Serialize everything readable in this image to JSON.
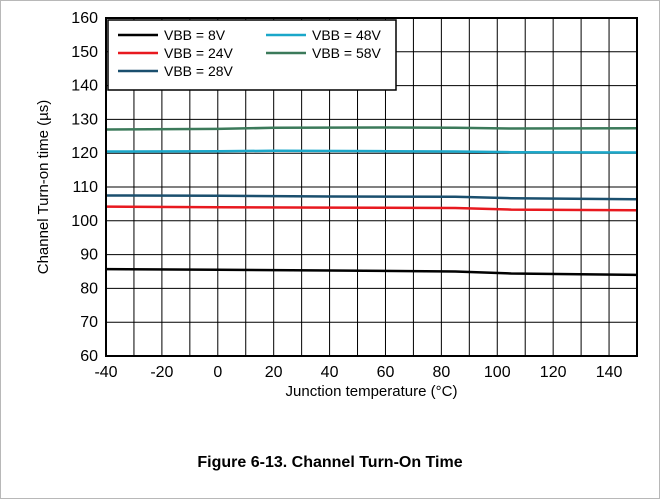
{
  "caption": "Figure 6-13. Channel Turn-On Time",
  "chart_data": {
    "type": "line",
    "title": "",
    "xlabel": "Junction temperature (°C)",
    "ylabel": "Channel Turn-on time (µs)",
    "xlim": [
      -40,
      150
    ],
    "ylim": [
      60,
      160
    ],
    "xticks": [
      -40,
      -20,
      0,
      20,
      40,
      60,
      80,
      100,
      120,
      140
    ],
    "yticks": [
      60,
      70,
      80,
      90,
      100,
      110,
      120,
      130,
      140,
      150,
      160
    ],
    "x_minor_step": 10,
    "grid": true,
    "legend_position": "top-left",
    "series": [
      {
        "name": "VBB = 8V",
        "color": "#000000",
        "x": [
          -40,
          0,
          40,
          85,
          105,
          150
        ],
        "y": [
          85.7,
          85.5,
          85.3,
          85.0,
          84.4,
          84.0
        ]
      },
      {
        "name": "VBB = 24V",
        "color": "#e8191f",
        "x": [
          -40,
          0,
          40,
          85,
          105,
          150
        ],
        "y": [
          104.2,
          104.0,
          103.9,
          103.8,
          103.3,
          103.1
        ]
      },
      {
        "name": "VBB = 28V",
        "color": "#1a4f6e",
        "x": [
          -40,
          0,
          40,
          85,
          105,
          150
        ],
        "y": [
          107.5,
          107.4,
          107.2,
          107.1,
          106.7,
          106.4
        ]
      },
      {
        "name": "VBB = 48V",
        "color": "#1aa7c9",
        "x": [
          -40,
          0,
          20,
          60,
          85,
          105,
          150
        ],
        "y": [
          120.5,
          120.6,
          120.7,
          120.6,
          120.5,
          120.3,
          120.2
        ]
      },
      {
        "name": "VBB = 58V",
        "color": "#3b7a5a",
        "x": [
          -40,
          0,
          20,
          60,
          85,
          105,
          150
        ],
        "y": [
          127.0,
          127.2,
          127.5,
          127.6,
          127.5,
          127.3,
          127.4
        ]
      }
    ]
  }
}
